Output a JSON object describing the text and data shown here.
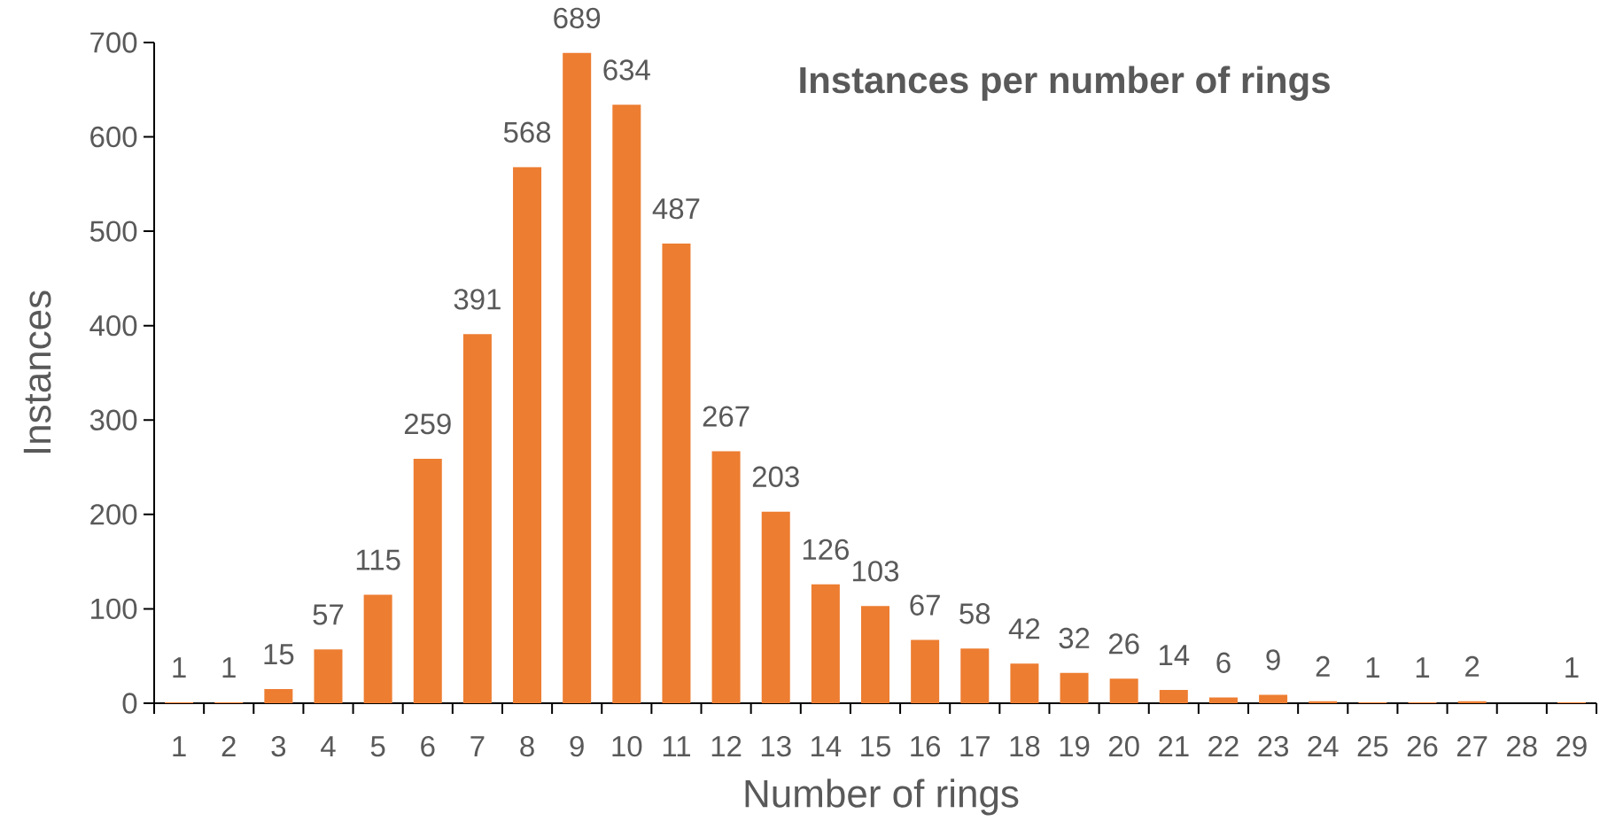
{
  "chart_data": {
    "type": "bar",
    "title": "Instances per number of rings",
    "xlabel": "Number of rings",
    "ylabel": "Instances",
    "categories": [
      "1",
      "2",
      "3",
      "4",
      "5",
      "6",
      "7",
      "8",
      "9",
      "10",
      "11",
      "12",
      "13",
      "14",
      "15",
      "16",
      "17",
      "18",
      "19",
      "20",
      "21",
      "22",
      "23",
      "24",
      "25",
      "26",
      "27",
      "28",
      "29"
    ],
    "values": [
      1,
      1,
      15,
      57,
      115,
      259,
      391,
      568,
      689,
      634,
      487,
      267,
      203,
      126,
      103,
      67,
      58,
      42,
      32,
      26,
      14,
      6,
      9,
      2,
      1,
      1,
      2,
      null,
      1
    ],
    "value_labels": [
      "1",
      "1",
      "15",
      "57",
      "115",
      "259",
      "391",
      "568",
      "689",
      "634",
      "487",
      "267",
      "203",
      "126",
      "103",
      "67",
      "58",
      "42",
      "32",
      "26",
      "14",
      "6",
      "9",
      "2",
      "1",
      "1",
      "2",
      null,
      "1"
    ],
    "color": "#ed7d31",
    "ylim": [
      0,
      700
    ],
    "yticks": [
      0,
      100,
      200,
      300,
      400,
      500,
      600,
      700
    ]
  }
}
